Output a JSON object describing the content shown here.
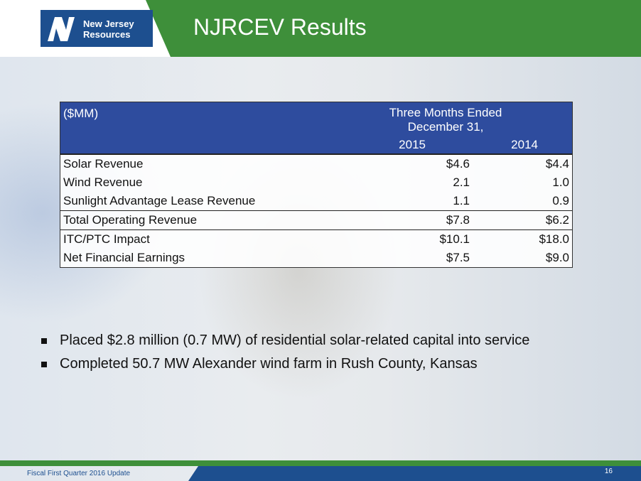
{
  "header": {
    "logo_line1": "New Jersey",
    "logo_line2": "Resources",
    "title": "NJRCEV Results"
  },
  "table": {
    "unit": "($MM)",
    "period": "Three Months Ended December 31,",
    "columns": [
      "2015",
      "2014"
    ],
    "rows": [
      [
        "Solar Revenue",
        "$4.6",
        "$4.4"
      ],
      [
        "Wind Revenue",
        "2.1",
        "1.0"
      ],
      [
        "Sunlight Advantage Lease Revenue",
        "1.1",
        "0.9"
      ],
      [
        "Total Operating Revenue",
        "$7.8",
        "$6.2"
      ],
      [
        "ITC/PTC Impact",
        "$10.1",
        "$18.0"
      ],
      [
        "Net Financial Earnings",
        "$7.5",
        "$9.0"
      ]
    ]
  },
  "bullets": [
    "Placed $2.8 million (0.7 MW) of residential solar-related capital into service",
    "Completed 50.7 MW Alexander wind farm in Rush County, Kansas"
  ],
  "footer": {
    "text": "Fiscal First Quarter 2016 Update",
    "page": "16"
  }
}
